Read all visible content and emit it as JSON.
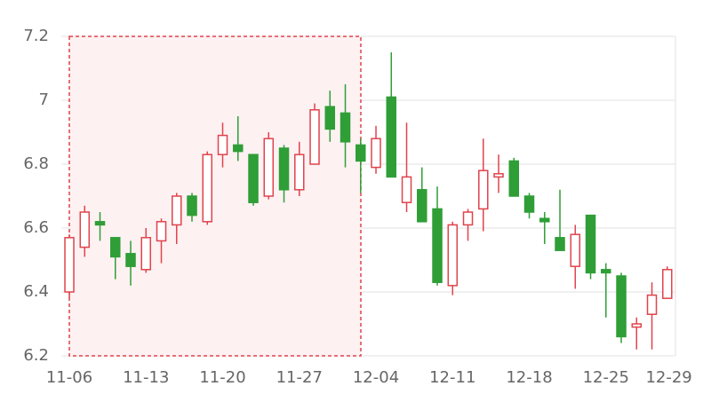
{
  "chart_data": {
    "type": "candlestick",
    "categories": [
      "11-06",
      null,
      null,
      null,
      null,
      "11-13",
      null,
      null,
      null,
      null,
      "11-20",
      null,
      null,
      null,
      null,
      "11-27",
      null,
      null,
      null,
      null,
      "12-04",
      null,
      null,
      null,
      null,
      "12-11",
      null,
      null,
      null,
      null,
      "12-18",
      null,
      null,
      null,
      null,
      "12-25",
      null,
      null,
      null,
      "12-29"
    ],
    "open": [
      6.4,
      6.54,
      6.62,
      6.57,
      6.52,
      6.47,
      6.56,
      6.61,
      6.7,
      6.62,
      6.83,
      6.86,
      6.83,
      6.7,
      6.85,
      6.72,
      6.8,
      6.98,
      6.96,
      6.86,
      6.79,
      7.01,
      6.68,
      6.72,
      6.66,
      6.42,
      6.61,
      6.66,
      6.76,
      6.81,
      6.7,
      6.63,
      6.57,
      6.48,
      6.64,
      6.47,
      6.45,
      6.29,
      6.33,
      6.38
    ],
    "close": [
      6.57,
      6.65,
      6.61,
      6.51,
      6.48,
      6.57,
      6.62,
      6.7,
      6.64,
      6.83,
      6.89,
      6.84,
      6.68,
      6.88,
      6.72,
      6.83,
      6.97,
      6.91,
      6.87,
      6.81,
      6.88,
      6.76,
      6.76,
      6.62,
      6.43,
      6.61,
      6.65,
      6.78,
      6.77,
      6.7,
      6.65,
      6.62,
      6.53,
      6.58,
      6.46,
      6.46,
      6.26,
      6.3,
      6.39,
      6.47
    ],
    "low": [
      6.38,
      6.51,
      6.56,
      6.44,
      6.42,
      6.46,
      6.49,
      6.55,
      6.62,
      6.61,
      6.79,
      6.81,
      6.67,
      6.69,
      6.68,
      6.7,
      6.8,
      6.87,
      6.79,
      6.71,
      6.77,
      6.76,
      6.65,
      6.62,
      6.42,
      6.39,
      6.56,
      6.59,
      6.71,
      6.7,
      6.63,
      6.55,
      6.53,
      6.41,
      6.44,
      6.32,
      6.24,
      6.22,
      6.22,
      6.38
    ],
    "high": [
      6.58,
      6.67,
      6.65,
      6.57,
      6.56,
      6.6,
      6.63,
      6.71,
      6.71,
      6.84,
      6.93,
      6.95,
      6.83,
      6.9,
      6.86,
      6.87,
      6.99,
      7.03,
      7.05,
      6.88,
      6.92,
      7.15,
      6.93,
      6.79,
      6.73,
      6.62,
      6.66,
      6.88,
      6.83,
      6.82,
      6.71,
      6.65,
      6.72,
      6.61,
      6.64,
      6.49,
      6.46,
      6.32,
      6.43,
      6.48
    ],
    "up_color": "#e0434c",
    "down_color": "#2f9e37",
    "ylim": [
      6.2,
      7.2
    ],
    "yticks": [
      {
        "value": 6.2,
        "label": "6.2"
      },
      {
        "value": 6.4,
        "label": "6.4"
      },
      {
        "value": 6.6,
        "label": "6.6"
      },
      {
        "value": 6.8,
        "label": "6.8"
      },
      7,
      {
        "value": 7.2,
        "label": "7.2"
      }
    ],
    "grid": true
  }
}
